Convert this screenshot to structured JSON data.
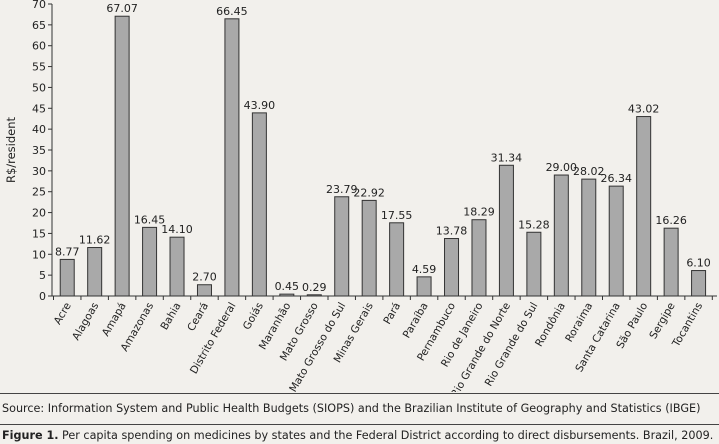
{
  "chart_data": {
    "type": "bar",
    "ylabel": "R$/resident",
    "xlabel": "",
    "ylim": [
      0,
      70
    ],
    "yticks": [
      0,
      5,
      10,
      15,
      20,
      25,
      30,
      35,
      40,
      45,
      50,
      55,
      60,
      65,
      70
    ],
    "grid": false,
    "categories": [
      "Acre",
      "Alagoas",
      "Amapá",
      "Amazonas",
      "Bahia",
      "Ceará",
      "Distrito Federal",
      "Goiás",
      "Maranhão",
      "Mato Grosso",
      "Mato Grosso do Sul",
      "Minas Gerais",
      "Pará",
      "Paraíba",
      "Pernambuco",
      "Rio de Janeiro",
      "Rio Grande do Norte",
      "Rio Grande do Sul",
      "Rondônia",
      "Roraima",
      "Santa Catarina",
      "São Paulo",
      "Sergipe",
      "Tocantins"
    ],
    "values": [
      8.77,
      11.62,
      67.07,
      16.45,
      14.1,
      2.7,
      66.45,
      43.9,
      0.45,
      0.29,
      23.79,
      22.92,
      17.55,
      4.59,
      13.78,
      18.29,
      31.34,
      15.28,
      29.0,
      28.02,
      26.34,
      43.02,
      16.26,
      6.1
    ],
    "value_labels": [
      "8.77",
      "11.62",
      "67.07",
      "16.45",
      "14.10",
      "2.70",
      "66.45",
      "43.90",
      "0.45",
      "0.29",
      "23.79",
      "22.92",
      "17.55",
      "4.59",
      "13.78",
      "18.29",
      "31.34",
      "15.28",
      "29.00",
      "28.02",
      "26.34",
      "43.02",
      "16.26",
      "6.10"
    ],
    "bar_color": "#a9a9a9",
    "bar_edge_color": "#333333"
  },
  "source": "Source: Information System and Public Health Budgets (SIOPS) and the Brazilian Institute of Geography and Statistics (IBGE)",
  "caption": {
    "label": "Figure 1.",
    "text": " Per capita spending on medicines by states and the Federal District according to direct disbursements. Brazil, 2009."
  }
}
